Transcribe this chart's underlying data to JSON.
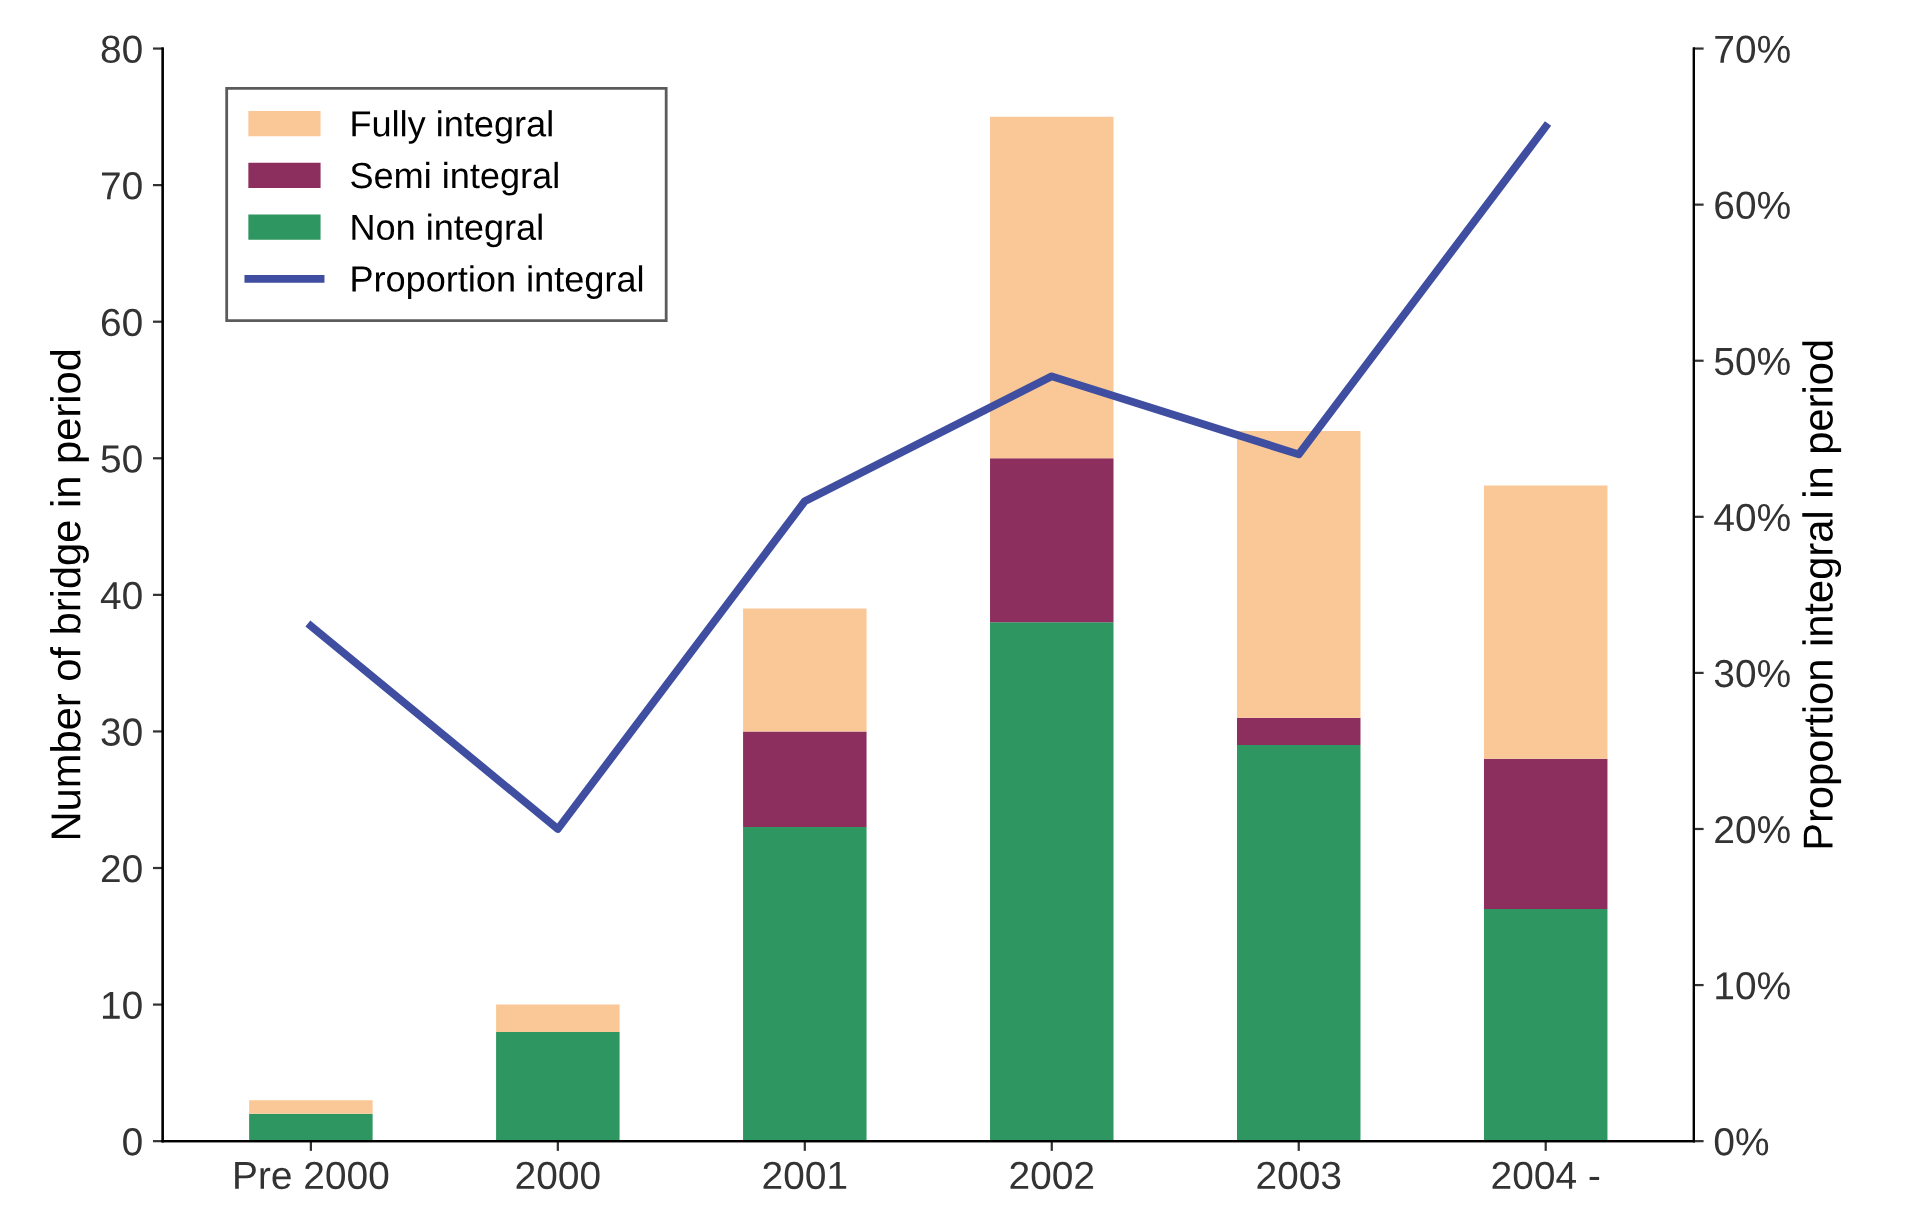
{
  "chart_data": {
    "type": "bar",
    "stacked": true,
    "categories": [
      "Pre 2000",
      "2000",
      "2001",
      "2002",
      "2003",
      "2004 -"
    ],
    "ylabel": "Number of bridge in period",
    "y2label": "Proportion integral in period",
    "series": [
      {
        "name": "Non integral",
        "color": "#2e9660",
        "values": [
          2,
          8,
          23,
          38,
          29,
          17
        ]
      },
      {
        "name": "Semi integral",
        "color": "#8c2f5f",
        "values": [
          0,
          0,
          7,
          12,
          2,
          11
        ]
      },
      {
        "name": "Fully integral",
        "color": "#fac896",
        "values": [
          1,
          2,
          9,
          25,
          21,
          20
        ]
      },
      {
        "name": "Proportion integral",
        "type": "line",
        "axis": "y2",
        "color": "#3f4ea0",
        "values": [
          33,
          20,
          41,
          49,
          44,
          65
        ]
      }
    ],
    "ylim": [
      0,
      80
    ],
    "yticks": [
      0,
      10,
      20,
      30,
      40,
      50,
      60,
      70,
      80
    ],
    "y2lim": [
      0,
      70
    ],
    "y2ticks": [
      {
        "value": 0,
        "label": "0%"
      },
      {
        "value": 10,
        "label": "10%"
      },
      {
        "value": 20,
        "label": "20%"
      },
      {
        "value": 30,
        "label": "30%"
      },
      {
        "value": 40,
        "label": "40%"
      },
      {
        "value": 50,
        "label": "50%"
      },
      {
        "value": 60,
        "label": "60%"
      },
      {
        "value": 70,
        "label": "70%"
      }
    ],
    "legend": "top left",
    "grid": false
  }
}
